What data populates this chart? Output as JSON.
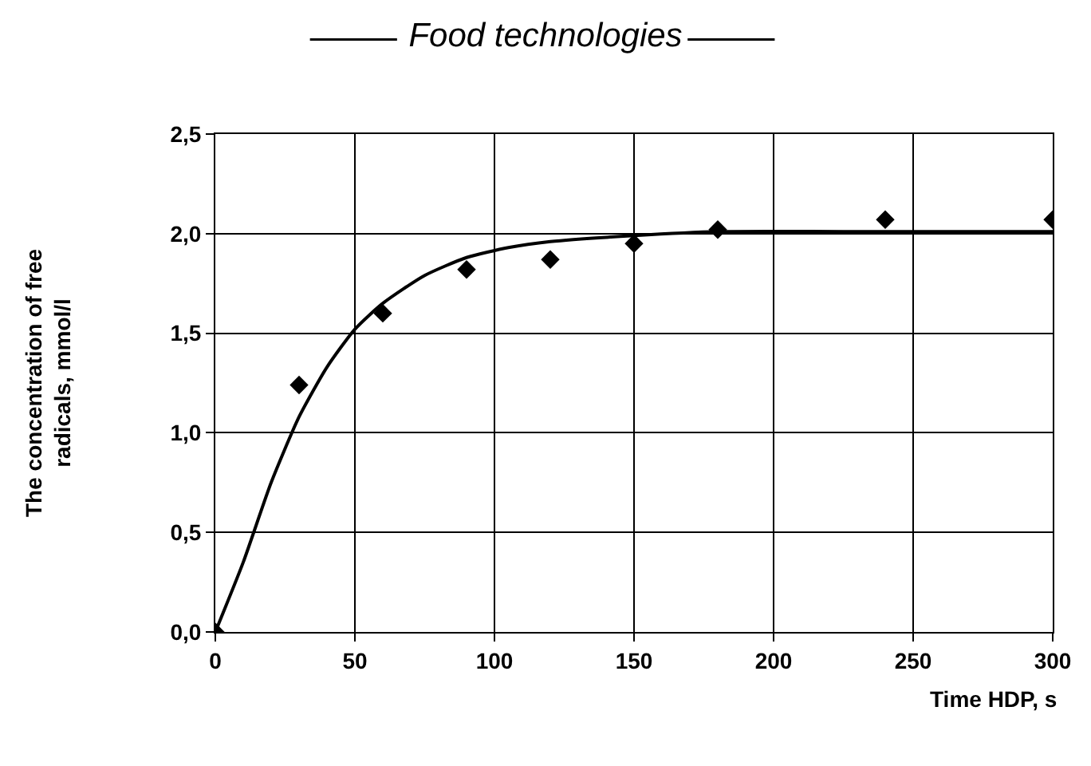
{
  "chart_data": {
    "type": "scatter",
    "title": "Food technologies",
    "xlabel": "Time HDP, s",
    "ylabel": "The concentration of free radicals, mmol/l",
    "xlim": [
      0,
      300
    ],
    "xticks": [
      0,
      50,
      100,
      150,
      200,
      250,
      300
    ],
    "ylim": [
      0,
      2.5
    ],
    "yticks": [
      {
        "value": 0,
        "label": "0,0"
      },
      {
        "value": 0.5,
        "label": "0,5"
      },
      {
        "value": 1,
        "label": "1,0"
      },
      {
        "value": 1.5,
        "label": "1,5"
      },
      {
        "value": 2,
        "label": "2,0"
      },
      {
        "value": 2.5,
        "label": "2,5"
      }
    ],
    "grid": true,
    "series": [
      {
        "marker": "diamond",
        "color": "#000000",
        "x": [
          0,
          30,
          60,
          90,
          120,
          150,
          180,
          240,
          300
        ],
        "values": [
          0,
          1.24,
          1.6,
          1.82,
          1.87,
          1.95,
          2.02,
          2.07,
          2.07
        ]
      },
      {
        "type": "line",
        "marker": "none",
        "line_style": "solid",
        "color": "#000000",
        "x": [
          0,
          10,
          20,
          30,
          40,
          50,
          60,
          75,
          90,
          105,
          120,
          150,
          180,
          240,
          300
        ],
        "values": [
          0,
          0.35,
          0.75,
          1.08,
          1.33,
          1.52,
          1.65,
          1.79,
          1.88,
          1.93,
          1.96,
          1.99,
          2.01,
          2.01,
          2.01
        ]
      }
    ]
  }
}
